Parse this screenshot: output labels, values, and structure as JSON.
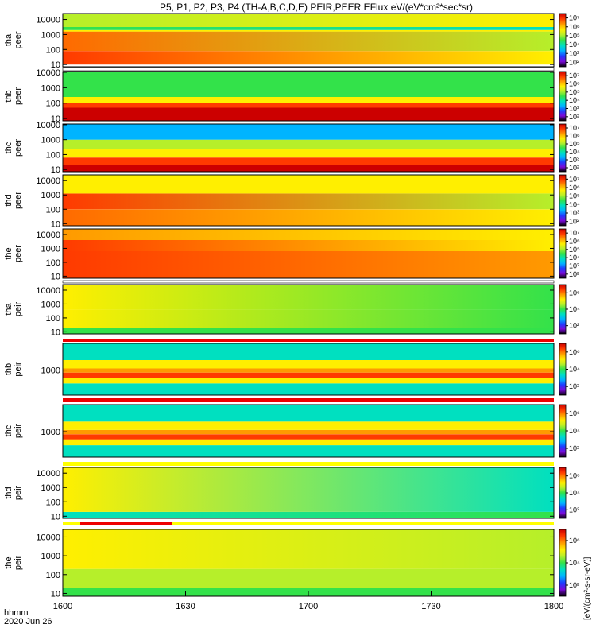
{
  "chart_data": {
    "type": "heatmap",
    "title": "P5, P1, P2, P3, P4 (TH-A,B,C,D,E) PEIR,PEER EFlux eV/(eV*cm²*sec*sr)",
    "x": {
      "label": "hhmm",
      "date": "2020 Jun 26",
      "ticks": [
        "1600",
        "1630",
        "1700",
        "1730",
        "1800"
      ],
      "range": [
        "16:00",
        "18:00"
      ]
    },
    "colorbar": {
      "label": "[eV/(cm²-s-sr-eV)]",
      "scale": "log",
      "colors": [
        "#000000",
        "#7a0ad8",
        "#1f3cff",
        "#00b4ff",
        "#00e0c0",
        "#33e24a",
        "#b6ef2a",
        "#ffef00",
        "#ff9a00",
        "#ff3a00",
        "#cc0000"
      ]
    },
    "panels": [
      {
        "name": "tha peer",
        "label_top": "tha",
        "label_bottom": "peer",
        "yticks": [
          "10",
          "100",
          "1000",
          "10000"
        ],
        "ymin_exp": 0.85,
        "ymax_exp": 4.4,
        "cbar_ticks": [
          "10²",
          "10³",
          "10⁴",
          "10⁵",
          "10⁶",
          "10⁷"
        ],
        "flag": "none",
        "bands": [
          [
            1.0,
            1.9,
            "#ff3a00",
            "#ffef00"
          ],
          [
            1.9,
            3.2,
            "#ff6a00",
            "#b6ef2a"
          ],
          [
            3.2,
            3.3,
            "#ffef00",
            "#ffef00"
          ],
          [
            3.3,
            3.5,
            "#33e24a",
            "#00e0c0"
          ],
          [
            3.5,
            4.4,
            "#b6ef2a",
            "#ffef00"
          ]
        ]
      },
      {
        "name": "thb peer",
        "label_top": "thb",
        "label_bottom": "peer",
        "yticks": [
          "10",
          "100",
          "1000",
          "10000"
        ],
        "ymin_exp": 0.85,
        "ymax_exp": 4.05,
        "cbar_ticks": [
          "10²",
          "10³",
          "10⁴",
          "10⁵",
          "10⁶",
          "10⁷"
        ],
        "flag": "white",
        "bands": [
          [
            0.85,
            1.7,
            "#cc0000",
            "#cc0000"
          ],
          [
            1.7,
            2.0,
            "#ff3a00",
            "#ff3a00"
          ],
          [
            2.0,
            2.4,
            "#ffef00",
            "#ffef00"
          ],
          [
            2.4,
            4.05,
            "#33e24a",
            "#33e24a"
          ]
        ]
      },
      {
        "name": "thc peer",
        "label_top": "thc",
        "label_bottom": "peer",
        "yticks": [
          "10",
          "100",
          "1000",
          "10000"
        ],
        "ymin_exp": 0.85,
        "ymax_exp": 4.05,
        "cbar_ticks": [
          "10²",
          "10³",
          "10⁴",
          "10⁵",
          "10⁶",
          "10⁷"
        ],
        "flag": "none",
        "bands": [
          [
            0.85,
            1.3,
            "#cc0000",
            "#cc0000"
          ],
          [
            1.3,
            1.8,
            "#ff3a00",
            "#ff3a00"
          ],
          [
            1.8,
            2.4,
            "#ffef00",
            "#ffef00"
          ],
          [
            2.4,
            3.0,
            "#b6ef2a",
            "#b6ef2a"
          ],
          [
            3.0,
            4.05,
            "#00b4ff",
            "#00b4ff"
          ]
        ]
      },
      {
        "name": "thd peer",
        "label_top": "thd",
        "label_bottom": "peer",
        "yticks": [
          "10",
          "100",
          "1000",
          "10000"
        ],
        "ymin_exp": 0.85,
        "ymax_exp": 4.4,
        "cbar_ticks": [
          "10²",
          "10³",
          "10⁴",
          "10⁵",
          "10⁶",
          "10⁷"
        ],
        "flag": "none",
        "bands": [
          [
            0.85,
            2.0,
            "#ff6a00",
            "#ffef00"
          ],
          [
            2.0,
            3.1,
            "#ff3a00",
            "#b6ef2a"
          ],
          [
            3.1,
            4.4,
            "#ffef00",
            "#ffef00"
          ]
        ]
      },
      {
        "name": "the peer",
        "label_top": "the",
        "label_bottom": "peer",
        "yticks": [
          "10",
          "100",
          "1000",
          "10000"
        ],
        "ymin_exp": 0.85,
        "ymax_exp": 4.4,
        "cbar_ticks": [
          "10²",
          "10³",
          "10⁴",
          "10⁵",
          "10⁶",
          "10⁷"
        ],
        "flag": "none",
        "bands": [
          [
            0.85,
            2.8,
            "#ff3a00",
            "#ff9a00"
          ],
          [
            2.8,
            3.6,
            "#ff3a00",
            "#ffef00"
          ],
          [
            3.6,
            4.4,
            "#ff9a00",
            "#ffef00"
          ]
        ]
      },
      {
        "name": "tha peir",
        "label_top": "tha",
        "label_bottom": "peir",
        "yticks": [
          "10",
          "100",
          "1000",
          "10000"
        ],
        "ymin_exp": 0.85,
        "ymax_exp": 4.4,
        "cbar_ticks": [
          "10²",
          "10⁴",
          "10⁶"
        ],
        "flag": "white",
        "bands": [
          [
            0.85,
            1.3,
            "#33e24a",
            "#33e24a"
          ],
          [
            1.3,
            2.6,
            "#ffef00",
            "#33e24a"
          ],
          [
            2.6,
            4.4,
            "#ffef00",
            "#33e24a"
          ]
        ]
      },
      {
        "name": "thb peir",
        "label_top": "thb",
        "label_bottom": "peir",
        "yticks": [
          "1000"
        ],
        "ymin_exp": 1.5,
        "ymax_exp": 4.6,
        "cbar_ticks": [
          "10²",
          "10⁴",
          "10⁶"
        ],
        "flag": "red",
        "bands": [
          [
            1.5,
            2.2,
            "#00e0c0",
            "#00e0c0"
          ],
          [
            2.2,
            2.55,
            "#ffef00",
            "#ffef00"
          ],
          [
            2.55,
            2.85,
            "#ff3a00",
            "#ff3a00"
          ],
          [
            2.85,
            3.1,
            "#ff9a00",
            "#ff9a00"
          ],
          [
            3.1,
            3.6,
            "#ffef00",
            "#ffef00"
          ],
          [
            3.6,
            4.6,
            "#00e0c0",
            "#00e0c0"
          ]
        ]
      },
      {
        "name": "thc peir",
        "label_top": "thc",
        "label_bottom": "peir",
        "yticks": [
          "1000"
        ],
        "ymin_exp": 1.5,
        "ymax_exp": 4.6,
        "cbar_ticks": [
          "10²",
          "10⁴",
          "10⁶"
        ],
        "flag": "red",
        "bands": [
          [
            1.5,
            2.2,
            "#00e0c0",
            "#00e0c0"
          ],
          [
            2.2,
            2.55,
            "#ffef00",
            "#ffef00"
          ],
          [
            2.55,
            2.85,
            "#ff3a00",
            "#ff3a00"
          ],
          [
            2.85,
            3.1,
            "#ff9a00",
            "#ff9a00"
          ],
          [
            3.1,
            3.6,
            "#ffef00",
            "#ffef00"
          ],
          [
            3.6,
            4.6,
            "#00e0c0",
            "#00e0c0"
          ]
        ]
      },
      {
        "name": "thd peir",
        "label_top": "thd",
        "label_bottom": "peir",
        "yticks": [
          "10",
          "100",
          "1000",
          "10000"
        ],
        "ymin_exp": 0.85,
        "ymax_exp": 4.4,
        "cbar_ticks": [
          "10²",
          "10⁴",
          "10⁶"
        ],
        "flag": "yellow",
        "bands": [
          [
            0.85,
            1.3,
            "#00e0c0",
            "#33e24a"
          ],
          [
            1.3,
            2.6,
            "#ffef00",
            "#00e0c0"
          ],
          [
            2.6,
            4.4,
            "#ffef00",
            "#00e0c0"
          ]
        ]
      },
      {
        "name": "the peir",
        "label_top": "the",
        "label_bottom": "peir",
        "yticks": [
          "10",
          "100",
          "1000",
          "10000"
        ],
        "ymin_exp": 0.85,
        "ymax_exp": 4.4,
        "cbar_ticks": [
          "10²",
          "10⁴",
          "10⁶"
        ],
        "flag": "redyellow",
        "bands": [
          [
            0.85,
            1.3,
            "#33e24a",
            "#33e24a"
          ],
          [
            1.3,
            2.3,
            "#b6ef2a",
            "#b6ef2a"
          ],
          [
            2.3,
            4.4,
            "#ffef00",
            "#b6ef2a"
          ]
        ]
      }
    ]
  }
}
